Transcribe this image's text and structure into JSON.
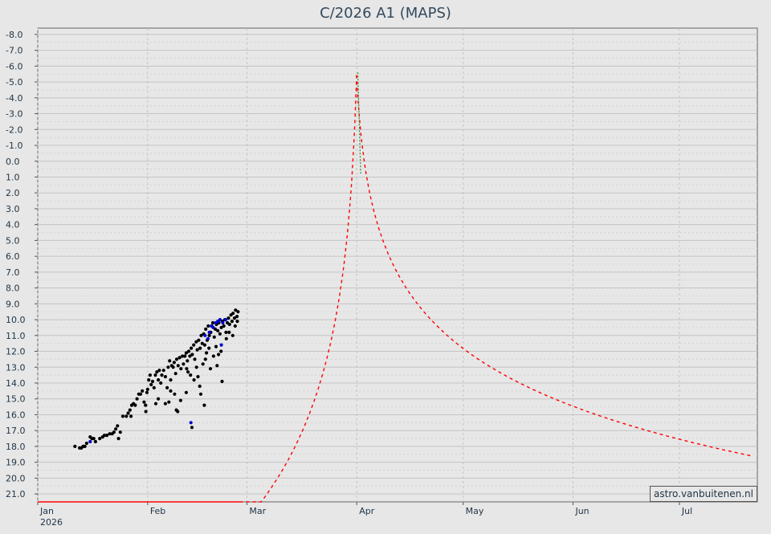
{
  "chart_data": {
    "type": "scatter",
    "title": "C/2026 A1 (MAPS)",
    "xlabel": "",
    "ylabel": "",
    "ylim": [
      -8.4,
      21.5
    ],
    "y_inverted": true,
    "y_ticks": [
      "-8.0",
      "-7.0",
      "-6.0",
      "-5.0",
      "-4.0",
      "-3.0",
      "-2.0",
      "-1.0",
      "0.0",
      "1.0",
      "2.0",
      "3.0",
      "4.0",
      "5.0",
      "6.0",
      "7.0",
      "8.0",
      "9.0",
      "10.0",
      "11.0",
      "12.0",
      "13.0",
      "14.0",
      "15.0",
      "16.0",
      "17.0",
      "18.0",
      "19.0",
      "20.0",
      "21.0"
    ],
    "x_ticks": [
      {
        "label": "Jan",
        "sublabel": "2026",
        "day": 0
      },
      {
        "label": "Feb",
        "sublabel": "",
        "day": 31
      },
      {
        "label": "Mar",
        "sublabel": "",
        "day": 59
      },
      {
        "label": "Apr",
        "sublabel": "",
        "day": 90
      },
      {
        "label": "May",
        "sublabel": "",
        "day": 120
      },
      {
        "label": "Jun",
        "sublabel": "",
        "day": 151
      },
      {
        "label": "Jul",
        "sublabel": "",
        "day": 181
      }
    ],
    "grid": true,
    "credit": "astro.vanbuitenen.nl",
    "series": [
      {
        "kind": "observed",
        "color": "#000000",
        "points": [
          [
            10.5,
            18.0
          ],
          [
            11.8,
            18.1
          ],
          [
            12.3,
            18.1
          ],
          [
            12.8,
            18.0
          ],
          [
            13.3,
            18.0
          ],
          [
            13.8,
            17.8
          ],
          [
            14.8,
            17.4
          ],
          [
            15.3,
            17.5
          ],
          [
            15.8,
            17.5
          ],
          [
            16.3,
            17.7
          ],
          [
            17.5,
            17.5
          ],
          [
            18.3,
            17.4
          ],
          [
            18.8,
            17.3
          ],
          [
            19.5,
            17.3
          ],
          [
            20.3,
            17.2
          ],
          [
            21.0,
            17.2
          ],
          [
            21.5,
            17.1
          ],
          [
            22.0,
            16.9
          ],
          [
            22.5,
            16.7
          ],
          [
            22.8,
            17.5
          ],
          [
            23.3,
            17.1
          ],
          [
            24.0,
            16.1
          ],
          [
            25.0,
            16.1
          ],
          [
            25.5,
            15.9
          ],
          [
            26.0,
            15.7
          ],
          [
            26.3,
            16.1
          ],
          [
            26.5,
            15.4
          ],
          [
            27.0,
            15.3
          ],
          [
            27.5,
            15.4
          ],
          [
            28.0,
            15.0
          ],
          [
            28.5,
            14.7
          ],
          [
            29.0,
            14.7
          ],
          [
            29.5,
            14.5
          ],
          [
            30.0,
            15.2
          ],
          [
            30.4,
            15.4
          ],
          [
            30.8,
            14.6
          ],
          [
            31.0,
            14.4
          ],
          [
            31.3,
            13.8
          ],
          [
            31.7,
            13.5
          ],
          [
            32.0,
            14.1
          ],
          [
            32.4,
            13.9
          ],
          [
            32.8,
            14.3
          ],
          [
            33.2,
            13.5
          ],
          [
            33.6,
            13.3
          ],
          [
            34.0,
            13.8
          ],
          [
            34.3,
            13.2
          ],
          [
            34.7,
            14.0
          ],
          [
            35.0,
            13.5
          ],
          [
            35.5,
            13.2
          ],
          [
            36.0,
            13.6
          ],
          [
            36.5,
            14.3
          ],
          [
            36.8,
            13.0
          ],
          [
            37.2,
            12.6
          ],
          [
            37.5,
            13.8
          ],
          [
            37.8,
            12.9
          ],
          [
            38.2,
            13.0
          ],
          [
            38.5,
            12.7
          ],
          [
            38.9,
            13.4
          ],
          [
            39.2,
            12.5
          ],
          [
            39.6,
            12.9
          ],
          [
            40.0,
            12.4
          ],
          [
            40.4,
            13.1
          ],
          [
            40.8,
            12.3
          ],
          [
            41.1,
            12.8
          ],
          [
            41.5,
            12.3
          ],
          [
            41.9,
            12.1
          ],
          [
            42.2,
            12.6
          ],
          [
            42.6,
            12.0
          ],
          [
            42.9,
            12.3
          ],
          [
            43.3,
            11.8
          ],
          [
            43.6,
            12.2
          ],
          [
            44.0,
            11.6
          ],
          [
            44.3,
            12.5
          ],
          [
            44.7,
            11.4
          ],
          [
            45.0,
            11.9
          ],
          [
            45.4,
            11.3
          ],
          [
            45.8,
            11.8
          ],
          [
            46.1,
            11.0
          ],
          [
            46.4,
            11.5
          ],
          [
            46.8,
            10.9
          ],
          [
            47.1,
            11.6
          ],
          [
            47.4,
            10.6
          ],
          [
            47.8,
            11.3
          ],
          [
            48.1,
            10.4
          ],
          [
            48.4,
            11.0
          ],
          [
            48.8,
            10.8
          ],
          [
            49.1,
            10.4
          ],
          [
            49.4,
            10.2
          ],
          [
            49.8,
            11.1
          ],
          [
            50.1,
            10.6
          ],
          [
            50.4,
            10.3
          ],
          [
            50.8,
            10.7
          ],
          [
            51.1,
            10.2
          ],
          [
            51.4,
            10.9
          ],
          [
            51.8,
            10.5
          ],
          [
            52.1,
            10.1
          ],
          [
            52.5,
            10.4
          ],
          [
            52.8,
            10.0
          ],
          [
            53.1,
            10.8
          ],
          [
            53.5,
            10.2
          ],
          [
            53.8,
            9.9
          ],
          [
            54.1,
            10.3
          ],
          [
            54.5,
            9.7
          ],
          [
            54.8,
            10.1
          ],
          [
            55.1,
            9.6
          ],
          [
            55.5,
            9.9
          ],
          [
            55.8,
            9.4
          ],
          [
            56.2,
            9.8
          ],
          [
            56.5,
            9.5
          ],
          [
            30.5,
            15.8
          ],
          [
            33.3,
            15.3
          ],
          [
            34.0,
            15.0
          ],
          [
            36.0,
            15.3
          ],
          [
            37.0,
            15.2
          ],
          [
            37.5,
            14.5
          ],
          [
            38.6,
            14.7
          ],
          [
            39.1,
            15.7
          ],
          [
            39.5,
            15.8
          ],
          [
            40.3,
            15.1
          ],
          [
            41.9,
            14.6
          ],
          [
            42.4,
            13.3
          ],
          [
            43.5,
            16.8
          ],
          [
            44.8,
            13.0
          ],
          [
            45.2,
            13.6
          ],
          [
            46.6,
            12.8
          ],
          [
            47.3,
            12.5
          ],
          [
            48.7,
            13.1
          ],
          [
            49.6,
            12.3
          ],
          [
            50.3,
            11.7
          ],
          [
            51.0,
            12.2
          ],
          [
            51.7,
            12.0
          ],
          [
            53.2,
            11.2
          ],
          [
            54.0,
            10.8
          ],
          [
            55.0,
            11.0
          ],
          [
            55.7,
            10.4
          ],
          [
            56.3,
            10.1
          ],
          [
            52.0,
            13.9
          ],
          [
            50.6,
            12.9
          ],
          [
            48.3,
            11.8
          ],
          [
            47.6,
            12.1
          ],
          [
            46.0,
            14.7
          ],
          [
            45.7,
            14.2
          ],
          [
            47.0,
            15.4
          ],
          [
            44.1,
            13.8
          ],
          [
            43.1,
            13.5
          ],
          [
            42.0,
            13.1
          ]
        ]
      },
      {
        "kind": "observed-alt",
        "color": "#0000cc",
        "points": [
          [
            14.8,
            17.7
          ],
          [
            43.2,
            16.5
          ],
          [
            47.2,
            11.0
          ],
          [
            48.4,
            10.8
          ],
          [
            49.0,
            10.4
          ],
          [
            49.5,
            10.5
          ],
          [
            50.2,
            10.2
          ],
          [
            50.8,
            10.1
          ],
          [
            51.4,
            10.0
          ],
          [
            52.2,
            10.2
          ],
          [
            53.0,
            10.0
          ],
          [
            48.0,
            11.2
          ],
          [
            51.8,
            11.6
          ]
        ]
      },
      {
        "kind": "fit",
        "color": "#ff0000",
        "model": {
          "peak_day": 89.9,
          "peak_mag": -6.4,
          "h": 8.4,
          "n_pre": 6.5,
          "h_post": 6.4,
          "n_post": 3.4
        }
      }
    ]
  }
}
